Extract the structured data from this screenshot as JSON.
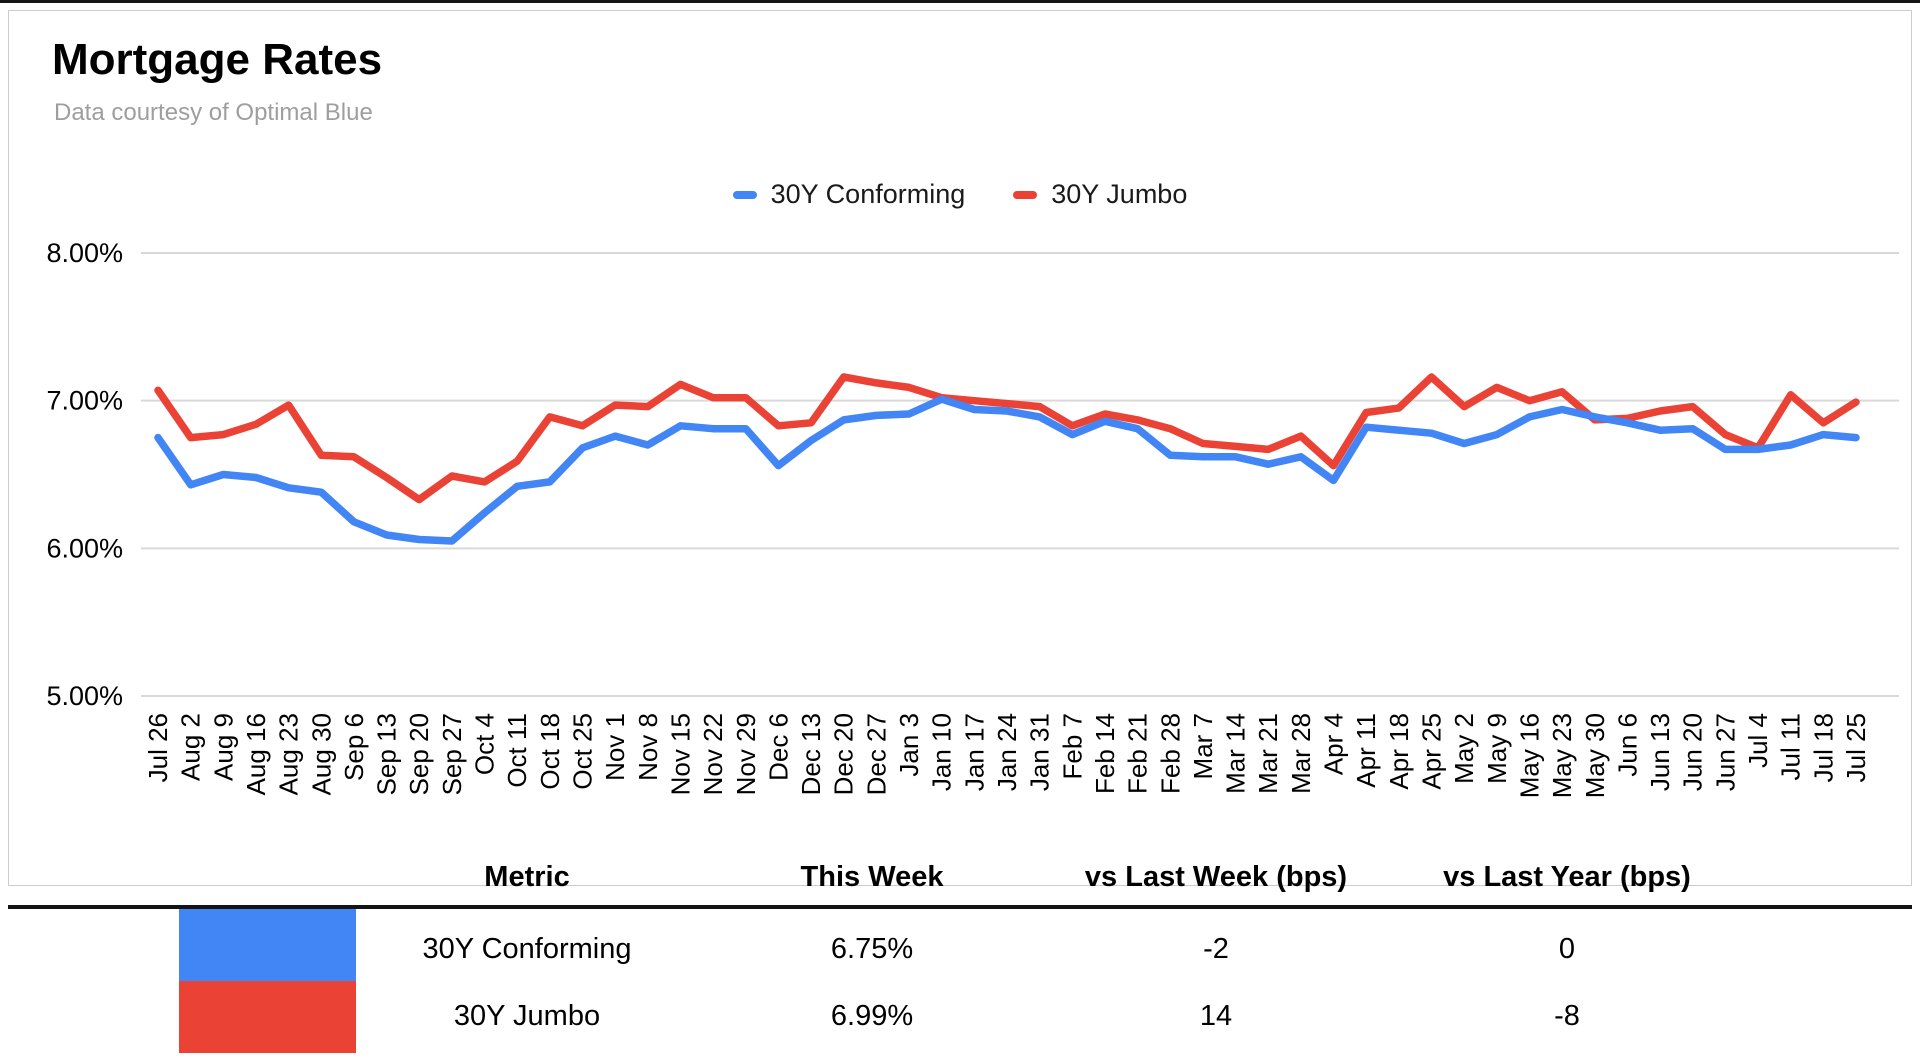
{
  "header": {
    "title": "Mortgage Rates",
    "subtitle": "Data courtesy of Optimal Blue"
  },
  "colors": {
    "conforming_blue": "#4285F4",
    "jumbo_red": "#EA4335",
    "gridline": "#D9D9D9",
    "subtitle_gray": "#9E9E9E"
  },
  "chart_data": {
    "type": "line",
    "title": "Mortgage Rates",
    "xlabel": "",
    "ylabel": "",
    "ylim": [
      5,
      8
    ],
    "grid": true,
    "legend_position": "top-center",
    "yticks": [
      {
        "value": 8,
        "label": "8.00%"
      },
      {
        "value": 7,
        "label": "7.00%"
      },
      {
        "value": 6,
        "label": "6.00%"
      },
      {
        "value": 5,
        "label": "5.00%"
      }
    ],
    "x": [
      "Jul 26",
      "Aug 2",
      "Aug 9",
      "Aug 16",
      "Aug 23",
      "Aug 30",
      "Sep 6",
      "Sep 13",
      "Sep 20",
      "Sep 27",
      "Oct 4",
      "Oct 11",
      "Oct 18",
      "Oct 25",
      "Nov 1",
      "Nov 8",
      "Nov 15",
      "Nov 22",
      "Nov 29",
      "Dec 6",
      "Dec 13",
      "Dec 20",
      "Dec 27",
      "Jan 3",
      "Jan 10",
      "Jan 17",
      "Jan 24",
      "Jan 31",
      "Feb 7",
      "Feb 14",
      "Feb 21",
      "Feb 28",
      "Mar 7",
      "Mar 14",
      "Mar 21",
      "Mar 28",
      "Apr 4",
      "Apr 11",
      "Apr 18",
      "Apr 25",
      "May 2",
      "May 9",
      "May 16",
      "May 23",
      "May 30",
      "Jun 6",
      "Jun 13",
      "Jun 20",
      "Jun 27",
      "Jul 4",
      "Jul 11",
      "Jul 18",
      "Jul 25"
    ],
    "series": [
      {
        "name": "30Y Conforming",
        "color": "#4285F4",
        "values": [
          6.75,
          6.43,
          6.5,
          6.48,
          6.41,
          6.38,
          6.18,
          6.09,
          6.06,
          6.05,
          6.24,
          6.42,
          6.45,
          6.68,
          6.76,
          6.7,
          6.83,
          6.81,
          6.81,
          6.56,
          6.73,
          6.87,
          6.9,
          6.91,
          7.01,
          6.94,
          6.93,
          6.89,
          6.77,
          6.86,
          6.81,
          6.63,
          6.62,
          6.62,
          6.57,
          6.62,
          6.46,
          6.82,
          6.8,
          6.78,
          6.71,
          6.77,
          6.89,
          6.94,
          6.89,
          6.85,
          6.8,
          6.81,
          6.67,
          6.67,
          6.7,
          6.77,
          6.75
        ]
      },
      {
        "name": "30Y Jumbo",
        "color": "#EA4335",
        "values": [
          7.07,
          6.75,
          6.77,
          6.84,
          6.97,
          6.63,
          6.62,
          6.48,
          6.33,
          6.49,
          6.45,
          6.59,
          6.89,
          6.83,
          6.97,
          6.96,
          7.11,
          7.02,
          7.02,
          6.83,
          6.85,
          7.16,
          7.12,
          7.09,
          7.02,
          7.0,
          6.98,
          6.96,
          6.83,
          6.91,
          6.87,
          6.81,
          6.71,
          6.69,
          6.67,
          6.76,
          6.56,
          6.92,
          6.95,
          7.16,
          6.96,
          7.09,
          7.0,
          7.06,
          6.87,
          6.88,
          6.93,
          6.96,
          6.77,
          6.68,
          7.04,
          6.85,
          6.99
        ]
      }
    ]
  },
  "table": {
    "headers": [
      "Metric",
      "This Week",
      "vs Last Week (bps)",
      "vs Last Year (bps)"
    ],
    "rows": [
      {
        "metric": "30Y Conforming",
        "swatch_color": "#4285F4",
        "this_week": "6.75%",
        "vs_last_week": "-2",
        "vs_last_year": "0"
      },
      {
        "metric": "30Y Jumbo",
        "swatch_color": "#EA4335",
        "this_week": "6.99%",
        "vs_last_week": "14",
        "vs_last_year": "-8"
      }
    ]
  }
}
